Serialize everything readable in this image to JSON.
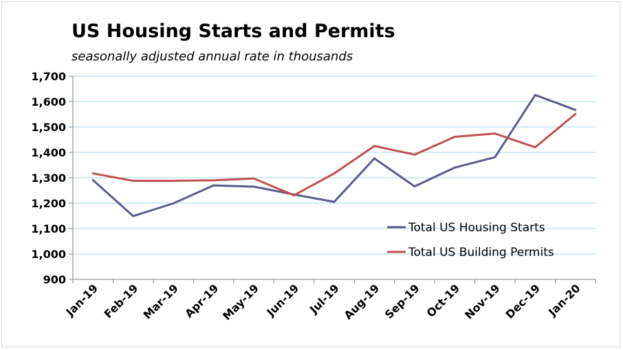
{
  "chart_data": {
    "type": "line",
    "title": "US Housing Starts and Permits",
    "subtitle": "seasonally adjusted annual rate in thousands",
    "categories": [
      "Jan-19",
      "Feb-19",
      "Mar-19",
      "Apr-19",
      "May-19",
      "Jun-19",
      "Jul-19",
      "Aug-19",
      "Sep-19",
      "Oct-19",
      "Nov-19",
      "Dec-19",
      "Jan-20"
    ],
    "series": [
      {
        "name": "Total US Housing Starts",
        "color": "#5b5a8e",
        "values": [
          1291,
          1149,
          1199,
          1270,
          1265,
          1234,
          1205,
          1376,
          1266,
          1340,
          1381,
          1626,
          1567
        ]
      },
      {
        "name": "Total US Building Permits",
        "color": "#c0504d",
        "values": [
          1317,
          1288,
          1288,
          1290,
          1297,
          1231,
          1317,
          1425,
          1391,
          1461,
          1474,
          1420,
          1551
        ]
      }
    ],
    "ylim": [
      900,
      1700
    ],
    "yticks": [
      "900",
      "1,000",
      "1,100",
      "1,200",
      "1,300",
      "1,400",
      "1,500",
      "1,600",
      "1,700"
    ],
    "grid": true,
    "legend_position": "bottom-right"
  }
}
